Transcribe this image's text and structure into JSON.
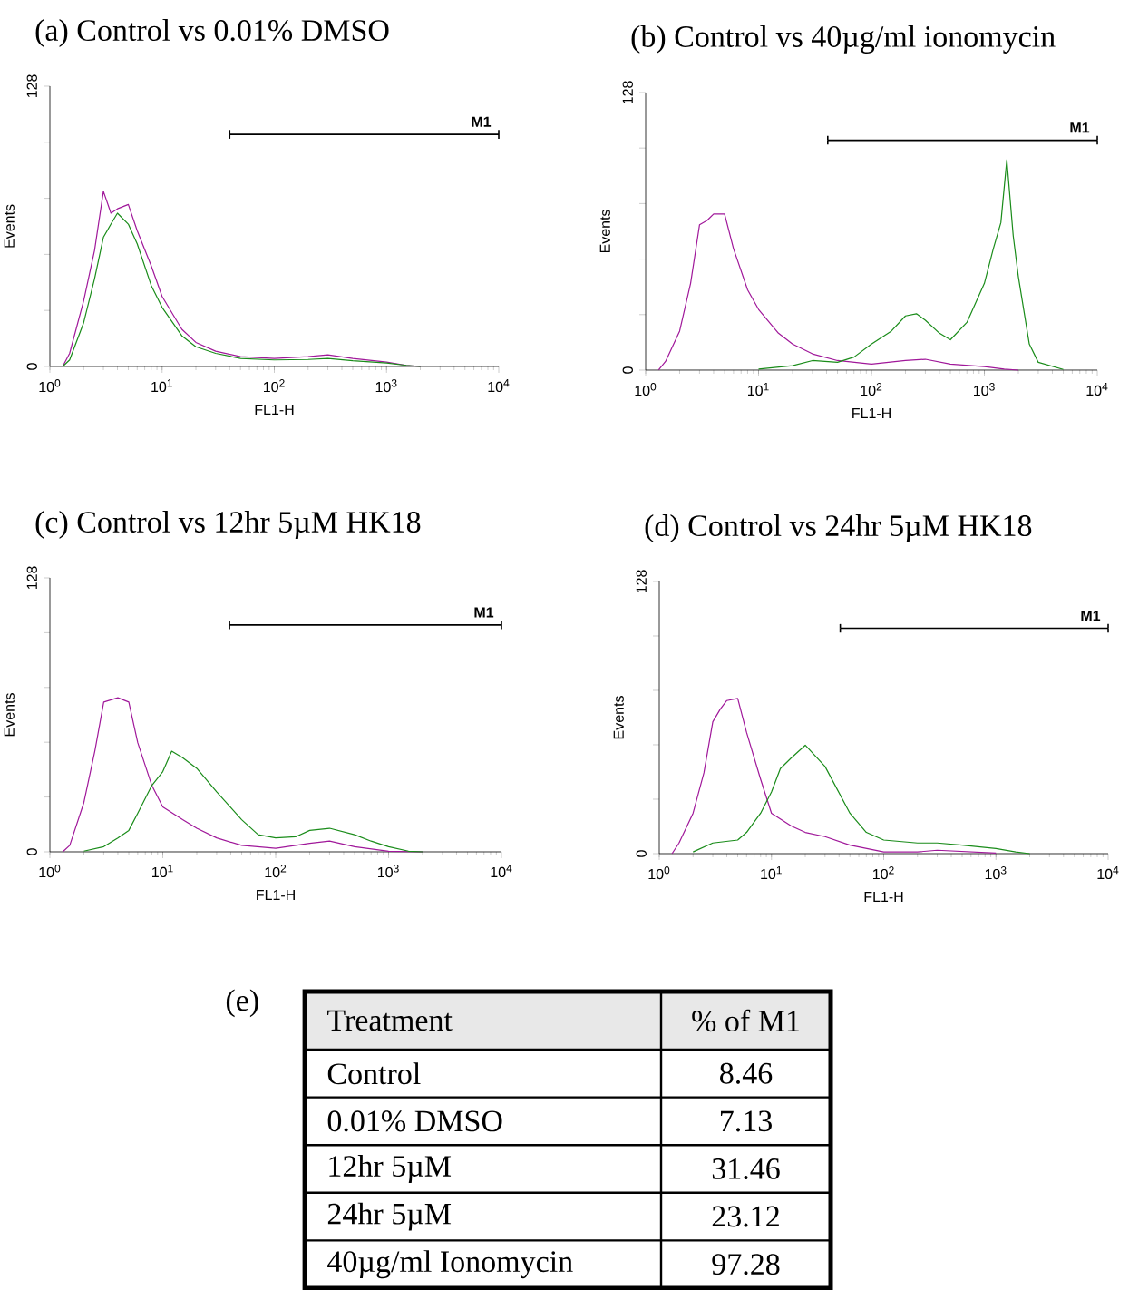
{
  "chart_data": [
    {
      "type": "line",
      "title": "(a) Control vs 0.01% DMSO",
      "xlabel": "FL1-H",
      "ylabel": "Events",
      "log": "x",
      "line_style": "solid",
      "xlim": [
        1,
        10000
      ],
      "ylim": [
        0,
        128
      ],
      "xticks": [
        {
          "value": 1,
          "label": "10$^{0}$"
        },
        {
          "value": 10,
          "label": "10$^{1}$"
        },
        {
          "value": 100,
          "label": "10$^{2}$"
        },
        {
          "value": 1000,
          "label": "10$^{3}$"
        },
        {
          "value": 10000,
          "label": "10$^{4}$"
        }
      ],
      "yticks": [
        0,
        {
          "value": 25.6,
          "label": null
        },
        {
          "value": 51.2,
          "label": null
        },
        {
          "value": 76.8,
          "label": null
        },
        {
          "value": 102.4,
          "label": null
        },
        128
      ],
      "series": [
        {
          "color": "#a0189a",
          "x": [
            1.3,
            1.5,
            2,
            2.5,
            3,
            3.5,
            4,
            5,
            6,
            8,
            10,
            15,
            20,
            30,
            50,
            100,
            200,
            300,
            500,
            1000,
            1500,
            2000
          ],
          "values": [
            0,
            6,
            30,
            53,
            80,
            70,
            72,
            74,
            62,
            46,
            32,
            17,
            11,
            7,
            4.5,
            3.7,
            4.5,
            5.3,
            3.7,
            2,
            0.5,
            0
          ]
        },
        {
          "color": "#1a8c1a",
          "x": [
            1.3,
            1.5,
            2,
            2.5,
            3,
            3.5,
            4,
            5,
            6,
            8,
            10,
            15,
            20,
            30,
            50,
            100,
            200,
            300,
            500,
            1000,
            1500,
            2000
          ],
          "values": [
            0,
            3,
            20,
            40,
            59,
            65,
            70,
            65,
            56,
            37,
            27,
            14,
            9,
            6,
            3.7,
            3,
            3.2,
            3.7,
            2.6,
            1.6,
            0.5,
            0
          ]
        },
        {
          "name": "M1",
          "color": "#000000",
          "x": [
            40,
            10000
          ],
          "values": [
            106,
            106
          ],
          "errors": [
            2,
            2
          ]
        }
      ]
    },
    {
      "type": "line",
      "title": "(b) Control vs 40µg/ml ionomycin",
      "xlabel": "FL1-H",
      "ylabel": "Events",
      "log": "x",
      "line_style": "solid",
      "xlim": [
        1,
        10000
      ],
      "ylim": [
        0,
        128
      ],
      "xticks": [
        {
          "value": 1,
          "label": "10$^{0}$"
        },
        {
          "value": 10,
          "label": "10$^{1}$"
        },
        {
          "value": 100,
          "label": "10$^{2}$"
        },
        {
          "value": 1000,
          "label": "10$^{3}$"
        },
        {
          "value": 10000,
          "label": "10$^{4}$"
        }
      ],
      "yticks": [
        0,
        {
          "value": 25.6,
          "label": null
        },
        {
          "value": 51.2,
          "label": null
        },
        {
          "value": 76.8,
          "label": null
        },
        {
          "value": 102.4,
          "label": null
        },
        128
      ],
      "series": [
        {
          "color": "#a0189a",
          "x": [
            1.3,
            1.5,
            2,
            2.5,
            3,
            3.5,
            4,
            5,
            6,
            8,
            10,
            15,
            20,
            30,
            50,
            100,
            200,
            300,
            500,
            1000,
            1500,
            2000
          ],
          "values": [
            0,
            4,
            18,
            40,
            67,
            69,
            72,
            72,
            56,
            37,
            28,
            17,
            12,
            7.5,
            4.4,
            2.8,
            4.4,
            5,
            2.8,
            1.6,
            0.5,
            0
          ]
        },
        {
          "color": "#1a8c1a",
          "x": [
            10,
            20,
            30,
            50,
            70,
            100,
            150,
            200,
            250,
            300,
            400,
            500,
            700,
            1000,
            1200,
            1400,
            1580,
            1800,
            2000,
            2500,
            3000,
            5000
          ],
          "values": [
            0.5,
            2,
            4.4,
            3.6,
            6,
            12,
            18,
            25,
            26,
            23,
            17,
            14,
            22,
            40,
            56,
            68,
            97,
            62,
            43,
            12,
            3.6,
            0.3
          ]
        },
        {
          "name": "M1",
          "color": "#000000",
          "x": [
            41,
            10000
          ],
          "values": [
            106,
            106
          ],
          "errors": [
            2,
            2
          ]
        }
      ]
    },
    {
      "type": "line",
      "title": "(c) Control vs 12hr 5µM HK18",
      "xlabel": "FL1-H",
      "ylabel": "Events",
      "log": "x",
      "line_style": "solid",
      "xlim": [
        1,
        10000
      ],
      "ylim": [
        0,
        128
      ],
      "xticks": [
        {
          "value": 1,
          "label": "10$^{0}$"
        },
        {
          "value": 10,
          "label": "10$^{1}$"
        },
        {
          "value": 100,
          "label": "10$^{2}$"
        },
        {
          "value": 1000,
          "label": "10$^{3}$"
        },
        {
          "value": 10000,
          "label": "10$^{4}$"
        }
      ],
      "yticks": [
        0,
        {
          "value": 25.6,
          "label": null
        },
        {
          "value": 51.2,
          "label": null
        },
        {
          "value": 76.8,
          "label": null
        },
        {
          "value": 102.4,
          "label": null
        },
        128
      ],
      "series": [
        {
          "color": "#a0189a",
          "x": [
            1.3,
            1.5,
            2,
            2.5,
            3,
            4,
            5,
            6,
            8,
            10,
            15,
            20,
            30,
            50,
            100,
            200,
            300,
            500,
            1000,
            2000
          ],
          "values": [
            0,
            3,
            23,
            47,
            70,
            72,
            70,
            51,
            31,
            21,
            15,
            11,
            6.5,
            3,
            1.6,
            4,
            5,
            2.4,
            0.3,
            0
          ]
        },
        {
          "color": "#1a8c1a",
          "x": [
            2,
            3,
            4,
            5,
            6,
            8,
            10,
            12,
            15,
            20,
            30,
            50,
            70,
            100,
            150,
            200,
            300,
            500,
            700,
            1000,
            1500,
            2000
          ],
          "values": [
            0.3,
            2.4,
            6.5,
            10,
            18,
            31,
            37.5,
            47,
            44,
            39,
            28,
            15,
            8,
            6.5,
            7,
            10,
            11,
            8,
            5,
            2.4,
            0.3,
            0
          ]
        },
        {
          "name": "M1",
          "color": "#000000",
          "x": [
            39,
            10000
          ],
          "values": [
            106,
            106
          ],
          "errors": [
            2,
            2
          ]
        }
      ]
    },
    {
      "type": "line",
      "title": "(d) Control vs 24hr 5µM HK18",
      "xlabel": "FL1-H",
      "ylabel": "Events",
      "log": "x",
      "line_style": "solid",
      "xlim": [
        1,
        10000
      ],
      "ylim": [
        0,
        128
      ],
      "xticks": [
        {
          "value": 1,
          "label": "10$^{0}$"
        },
        {
          "value": 10,
          "label": "10$^{1}$"
        },
        {
          "value": 100,
          "label": "10$^{2}$"
        },
        {
          "value": 1000,
          "label": "10$^{3}$"
        },
        {
          "value": 10000,
          "label": "10$^{4}$"
        }
      ],
      "yticks": [
        0,
        {
          "value": 25.6,
          "label": null
        },
        {
          "value": 51.2,
          "label": null
        },
        {
          "value": 76.8,
          "label": null
        },
        {
          "value": 102.4,
          "label": null
        },
        128
      ],
      "series": [
        {
          "color": "#a0189a",
          "x": [
            1.3,
            1.5,
            2,
            2.5,
            3,
            3.5,
            4,
            5,
            6,
            8,
            10,
            15,
            20,
            30,
            50,
            100,
            200,
            300,
            1000
          ],
          "values": [
            0,
            5,
            19,
            38,
            62,
            68,
            72,
            73,
            57,
            35,
            19,
            13,
            10,
            8,
            4,
            0.8,
            0.8,
            1.6,
            0.3
          ]
        },
        {
          "color": "#1a8c1a",
          "x": [
            2,
            3,
            5,
            6,
            8,
            10,
            12,
            15,
            20,
            30,
            50,
            70,
            100,
            200,
            300,
            500,
            1000,
            1500,
            2000
          ],
          "values": [
            0.8,
            5,
            6.4,
            10,
            19,
            29,
            40,
            45,
            51,
            41,
            19,
            10,
            6.4,
            5,
            5,
            4,
            2.4,
            0.8,
            0
          ]
        },
        {
          "name": "M1",
          "color": "#000000",
          "x": [
            41,
            10000
          ],
          "values": [
            106,
            106
          ],
          "errors": [
            2,
            2
          ]
        }
      ]
    },
    {
      "type": "other",
      "title": "(e)",
      "annotations": [
        "Treatment",
        "% of M1"
      ],
      "data_labels": true,
      "categories": [
        "Control",
        "0.01% DMSO",
        "12hr 5µM",
        "24hr 5µM",
        "40µg/ml Ionomycin"
      ],
      "values": [
        8.46,
        7.13,
        31.46,
        23.12,
        97.28
      ]
    }
  ]
}
